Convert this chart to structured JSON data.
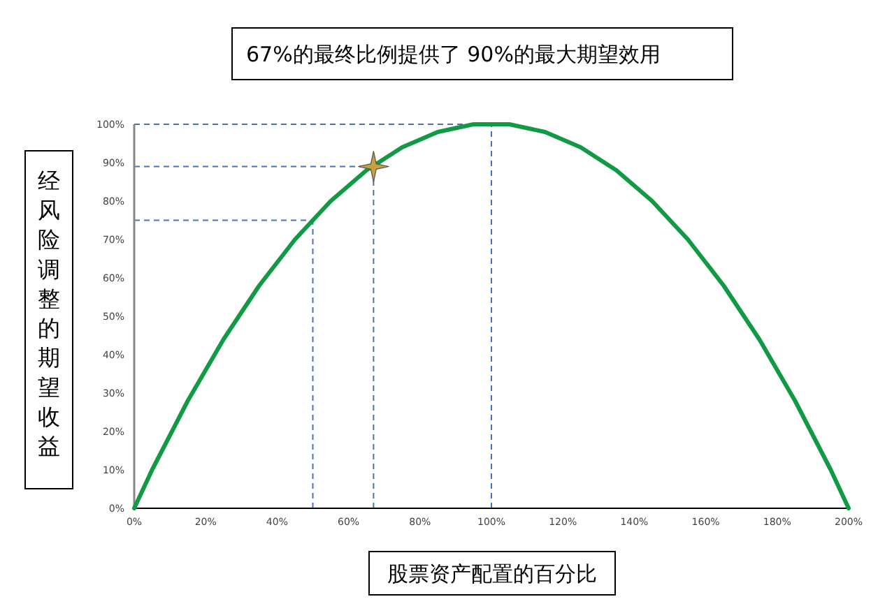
{
  "chart_data": {
    "type": "line",
    "title": "67%的最终比例提供了 90%的最大期望效用",
    "xlabel": "股票资产配置的百分比",
    "ylabel": "经风险调整的期望收益",
    "x": [
      0,
      5,
      10,
      15,
      20,
      25,
      30,
      35,
      40,
      45,
      50,
      55,
      60,
      65,
      70,
      75,
      80,
      85,
      90,
      95,
      100,
      105,
      110,
      115,
      120,
      125,
      130,
      135,
      140,
      145,
      150,
      155,
      160,
      165,
      170,
      175,
      180,
      185,
      190,
      195,
      200
    ],
    "series": [
      {
        "color": "#119944",
        "values": [
          0,
          10,
          19,
          28,
          36,
          44,
          51,
          58,
          64,
          70,
          75,
          80,
          84,
          88,
          91,
          94,
          96,
          98,
          99,
          100,
          100,
          100,
          99,
          98,
          96,
          94,
          91,
          88,
          84,
          80,
          75,
          70,
          64,
          58,
          51,
          44,
          36,
          28,
          19,
          10,
          0
        ]
      },
      {
        "type": "scatter",
        "marker": "star",
        "color": "#c8a040",
        "x": [
          67
        ],
        "values": [
          89
        ]
      }
    ],
    "xlim": [
      0,
      200
    ],
    "ylim": [
      0,
      100
    ],
    "xticks": [
      {
        "value": 0,
        "label": "0%"
      },
      {
        "value": 20,
        "label": "20%"
      },
      {
        "value": 40,
        "label": "40%"
      },
      {
        "value": 60,
        "label": "60%"
      },
      {
        "value": 80,
        "label": "80%"
      },
      {
        "value": 100,
        "label": "100%"
      },
      {
        "value": 120,
        "label": "120%"
      },
      {
        "value": 140,
        "label": "140%"
      },
      {
        "value": 160,
        "label": "160%"
      },
      {
        "value": 180,
        "label": "180%"
      },
      {
        "value": 200,
        "label": "200%"
      }
    ],
    "yticks": [
      {
        "value": 0,
        "label": "0%"
      },
      {
        "value": 10,
        "label": "10%"
      },
      {
        "value": 20,
        "label": "20%"
      },
      {
        "value": 30,
        "label": "30%"
      },
      {
        "value": 40,
        "label": "40%"
      },
      {
        "value": 50,
        "label": "50%"
      },
      {
        "value": 60,
        "label": "60%"
      },
      {
        "value": 70,
        "label": "70%"
      },
      {
        "value": 80,
        "label": "80%"
      },
      {
        "value": 90,
        "label": "90%"
      },
      {
        "value": 100,
        "label": "100%"
      }
    ],
    "ref_lines": [
      {
        "axis": "y",
        "value": 100,
        "color": "#4a72b8",
        "line_style": "dashed"
      },
      {
        "axis": "y",
        "value": 89,
        "color": "#4a72b8",
        "line_style": "dashed"
      },
      {
        "axis": "y",
        "value": 75,
        "color": "#4a72b8",
        "line_style": "dashed"
      },
      {
        "axis": "x",
        "value": 50,
        "color": "#4a72b8",
        "line_style": "dashed"
      },
      {
        "axis": "x",
        "value": 67,
        "color": "#4a72b8",
        "line_style": "dashed"
      },
      {
        "axis": "x",
        "value": 100,
        "color": "#4a72b8",
        "line_style": "dashed"
      }
    ]
  }
}
